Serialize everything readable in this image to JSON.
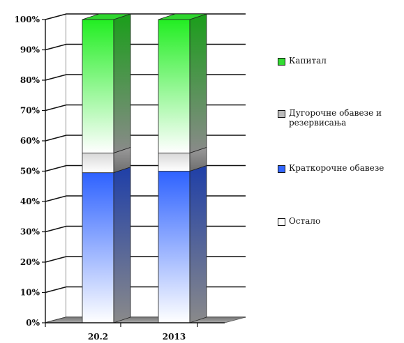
{
  "chart_data": {
    "type": "bar",
    "stacked": true,
    "three_d": true,
    "categories": [
      "20.2",
      "2013"
    ],
    "ylim": [
      0,
      100
    ],
    "y_ticks": [
      "0%",
      "10%",
      "20%",
      "30%",
      "40%",
      "50%",
      "60%",
      "70%",
      "80%",
      "90%",
      "100%"
    ],
    "series": [
      {
        "name": "Остало",
        "values": [
          0,
          0
        ],
        "color": "#ffffff"
      },
      {
        "name": "Краткорочне обавезе",
        "values": [
          49.5,
          50
        ],
        "color": "#3366ff"
      },
      {
        "name": "Дугорочне обавезе и резервисања",
        "values": [
          6.5,
          6
        ],
        "color": "#bbbbbb"
      },
      {
        "name": "Капитал",
        "values": [
          44,
          44
        ],
        "color": "#33dd33"
      }
    ],
    "legend_order": [
      3,
      2,
      1,
      0
    ],
    "legend_placement": "right",
    "grid": true
  }
}
